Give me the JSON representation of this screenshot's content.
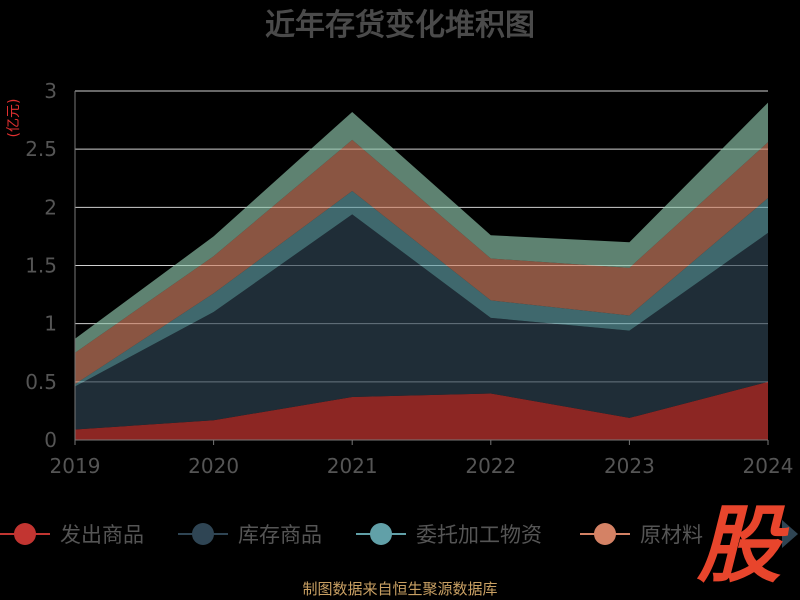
{
  "chart_data": {
    "type": "area",
    "stacked": true,
    "title": "近年存货变化堆积图",
    "ylabel": "(亿元)",
    "x": [
      "2019",
      "2020",
      "2021",
      "2022",
      "2023",
      "2024"
    ],
    "ylim": [
      0,
      3
    ],
    "yticks": [
      "0",
      "0.5",
      "1",
      "1.5",
      "2",
      "2.5",
      "3"
    ],
    "grid": true,
    "legend_position": "bottom",
    "series": [
      {
        "name": "发出商品",
        "color": "#c23531",
        "values": [
          0.09,
          0.17,
          0.37,
          0.4,
          0.19,
          0.5
        ]
      },
      {
        "name": "库存商品",
        "color": "#2f4554",
        "values": [
          0.37,
          0.93,
          1.57,
          0.65,
          0.75,
          1.28
        ]
      },
      {
        "name": "委托加工物资",
        "color": "#61a0a8",
        "values": [
          0.02,
          0.16,
          0.2,
          0.15,
          0.13,
          0.3
        ]
      },
      {
        "name": "原材料",
        "color": "#d48265",
        "values": [
          0.27,
          0.32,
          0.44,
          0.36,
          0.41,
          0.48
        ]
      },
      {
        "name": "",
        "color": "#91c7ae",
        "values": [
          0.12,
          0.17,
          0.24,
          0.2,
          0.22,
          0.34
        ]
      }
    ]
  },
  "legend": {
    "items": [
      "发出商品",
      "库存商品",
      "委托加工物资",
      "原材料"
    ]
  },
  "stamp_text": "股",
  "footer": "制图数据来自恒生聚源数据库"
}
